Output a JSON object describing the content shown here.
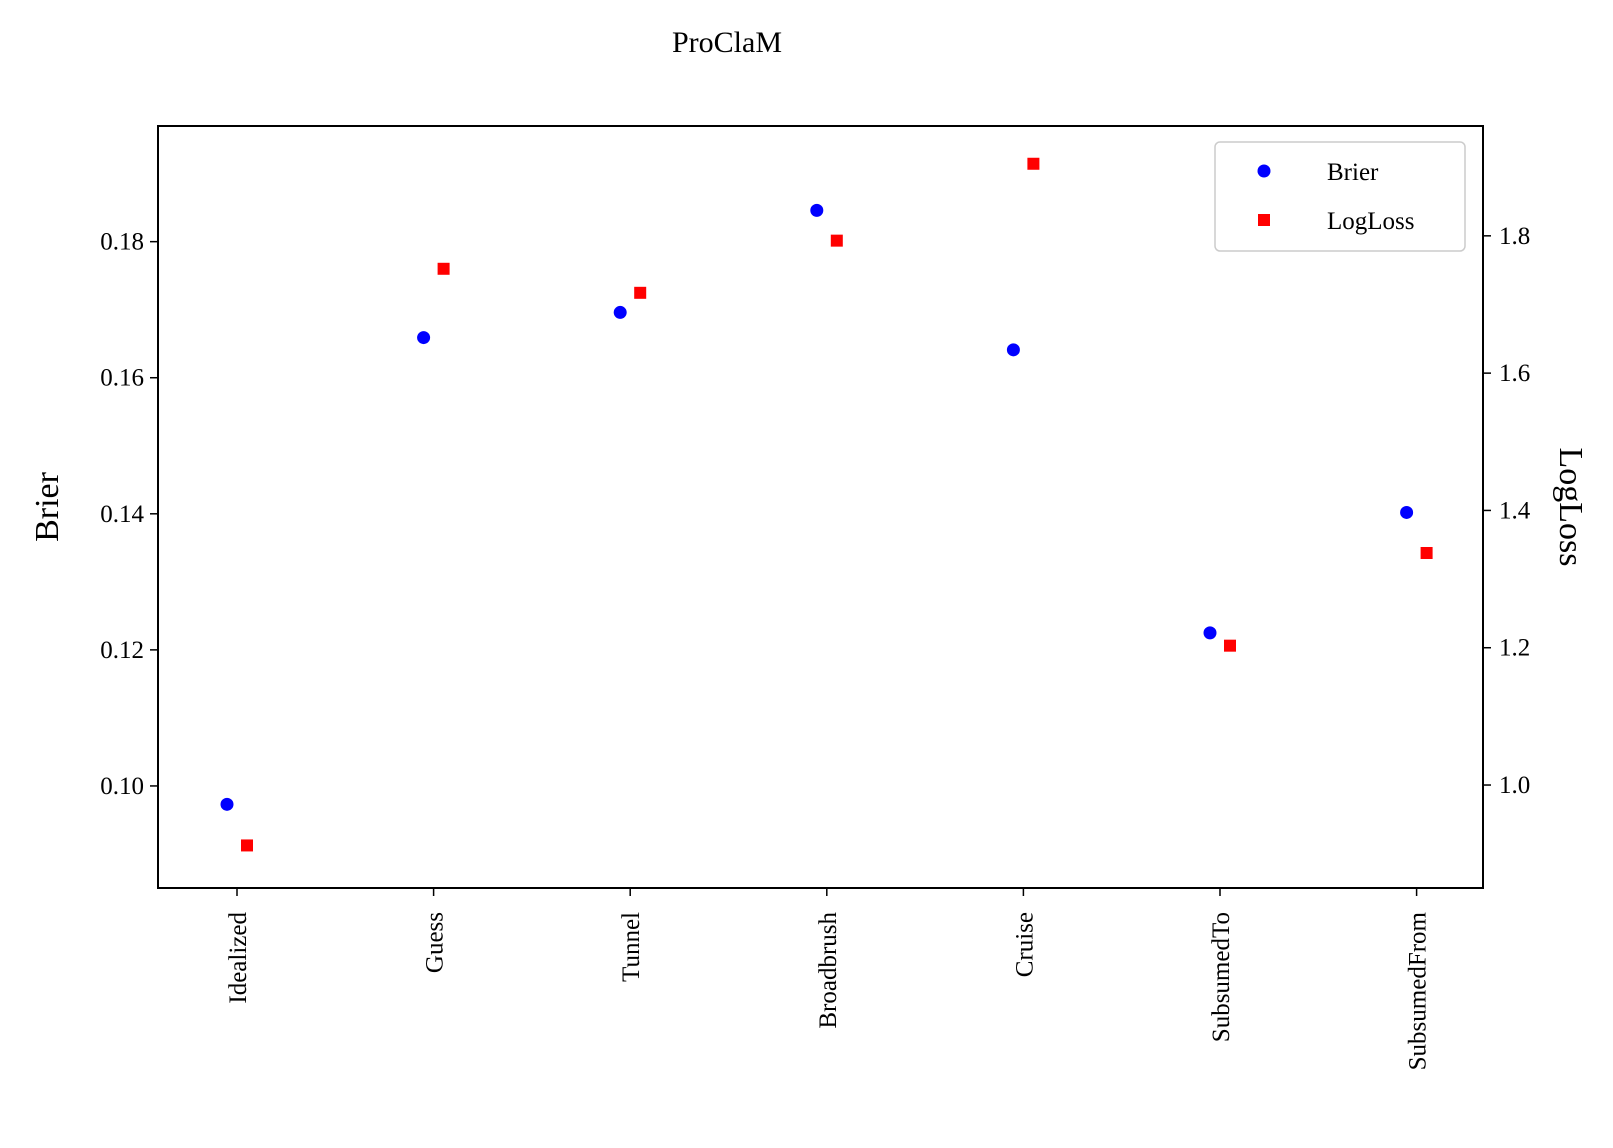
{
  "chart_data": {
    "type": "scatter",
    "title": "ProClaM",
    "categories": [
      "Idealized",
      "Guess",
      "Tunnel",
      "Broadbrush",
      "Cruise",
      "SubsumedTo",
      "SubsumedFrom"
    ],
    "ylabel_left": "Brier",
    "ylabel_right": "LogLoss",
    "y_left": {
      "ylim": [
        0.085,
        0.197
      ],
      "ticks": [
        "0.10",
        "0.12",
        "0.14",
        "0.16",
        "0.18"
      ]
    },
    "y_right": {
      "ylim": [
        0.85,
        1.96
      ],
      "ticks": [
        "1.0",
        "1.2",
        "1.4",
        "1.6",
        "1.8"
      ]
    },
    "series": [
      {
        "name": "Brier",
        "axis": "left",
        "marker": "circle",
        "color": "#0000ff",
        "values": [
          0.0973,
          0.1659,
          0.1696,
          0.1846,
          0.1641,
          0.1225,
          0.1402
        ]
      },
      {
        "name": "LogLoss",
        "axis": "right",
        "marker": "square",
        "color": "#ff0000",
        "values": [
          0.912,
          1.752,
          1.717,
          1.793,
          1.905,
          1.203,
          1.338
        ]
      }
    ],
    "legend": "top-right",
    "grid": false
  }
}
